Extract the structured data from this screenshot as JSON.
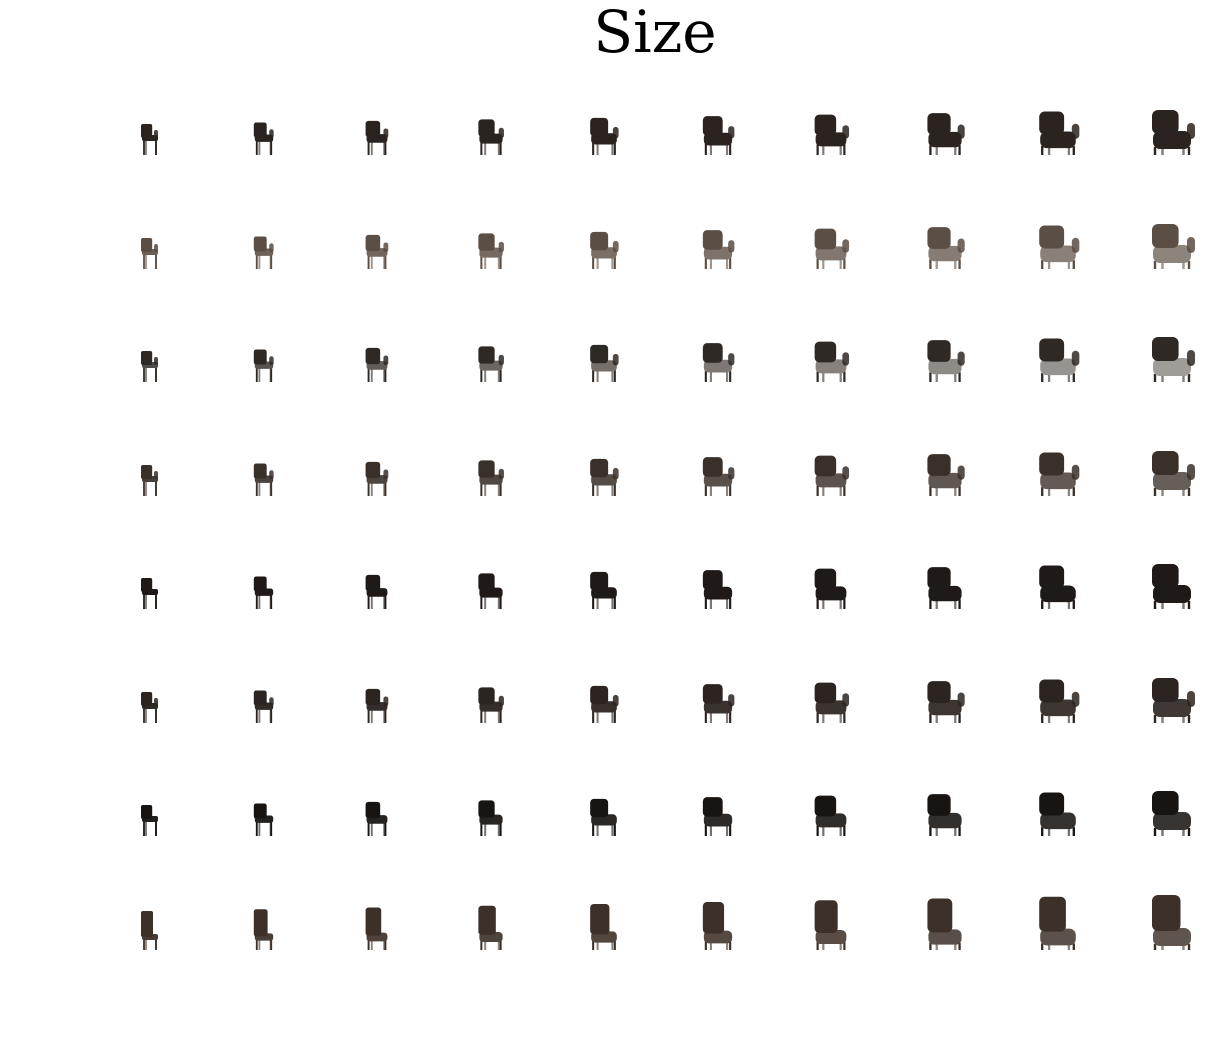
{
  "figure": {
    "title": "Size"
  },
  "grid_content": {
    "rows": 8,
    "columns": 10,
    "subject": "chair",
    "rows_spec": [
      {
        "style": "armchair",
        "shade": "#2a231f",
        "light": 0.0
      },
      {
        "style": "armchair",
        "shade": "#5b4e44",
        "light": 0.35
      },
      {
        "style": "swivel",
        "shade": "#2f2925",
        "light": 0.6
      },
      {
        "style": "armchair",
        "shade": "#3a302a",
        "light": 0.25
      },
      {
        "style": "side",
        "shade": "#1f1a17",
        "light": 0.0
      },
      {
        "style": "armchair",
        "shade": "#2c2420",
        "light": 0.1
      },
      {
        "style": "side",
        "shade": "#181412",
        "light": 0.15
      },
      {
        "style": "tall",
        "shade": "#3d3028",
        "light": 0.2
      }
    ],
    "scale_progression": [
      0.0,
      0.11,
      0.22,
      0.33,
      0.44,
      0.56,
      0.67,
      0.78,
      0.89,
      1.0
    ]
  }
}
